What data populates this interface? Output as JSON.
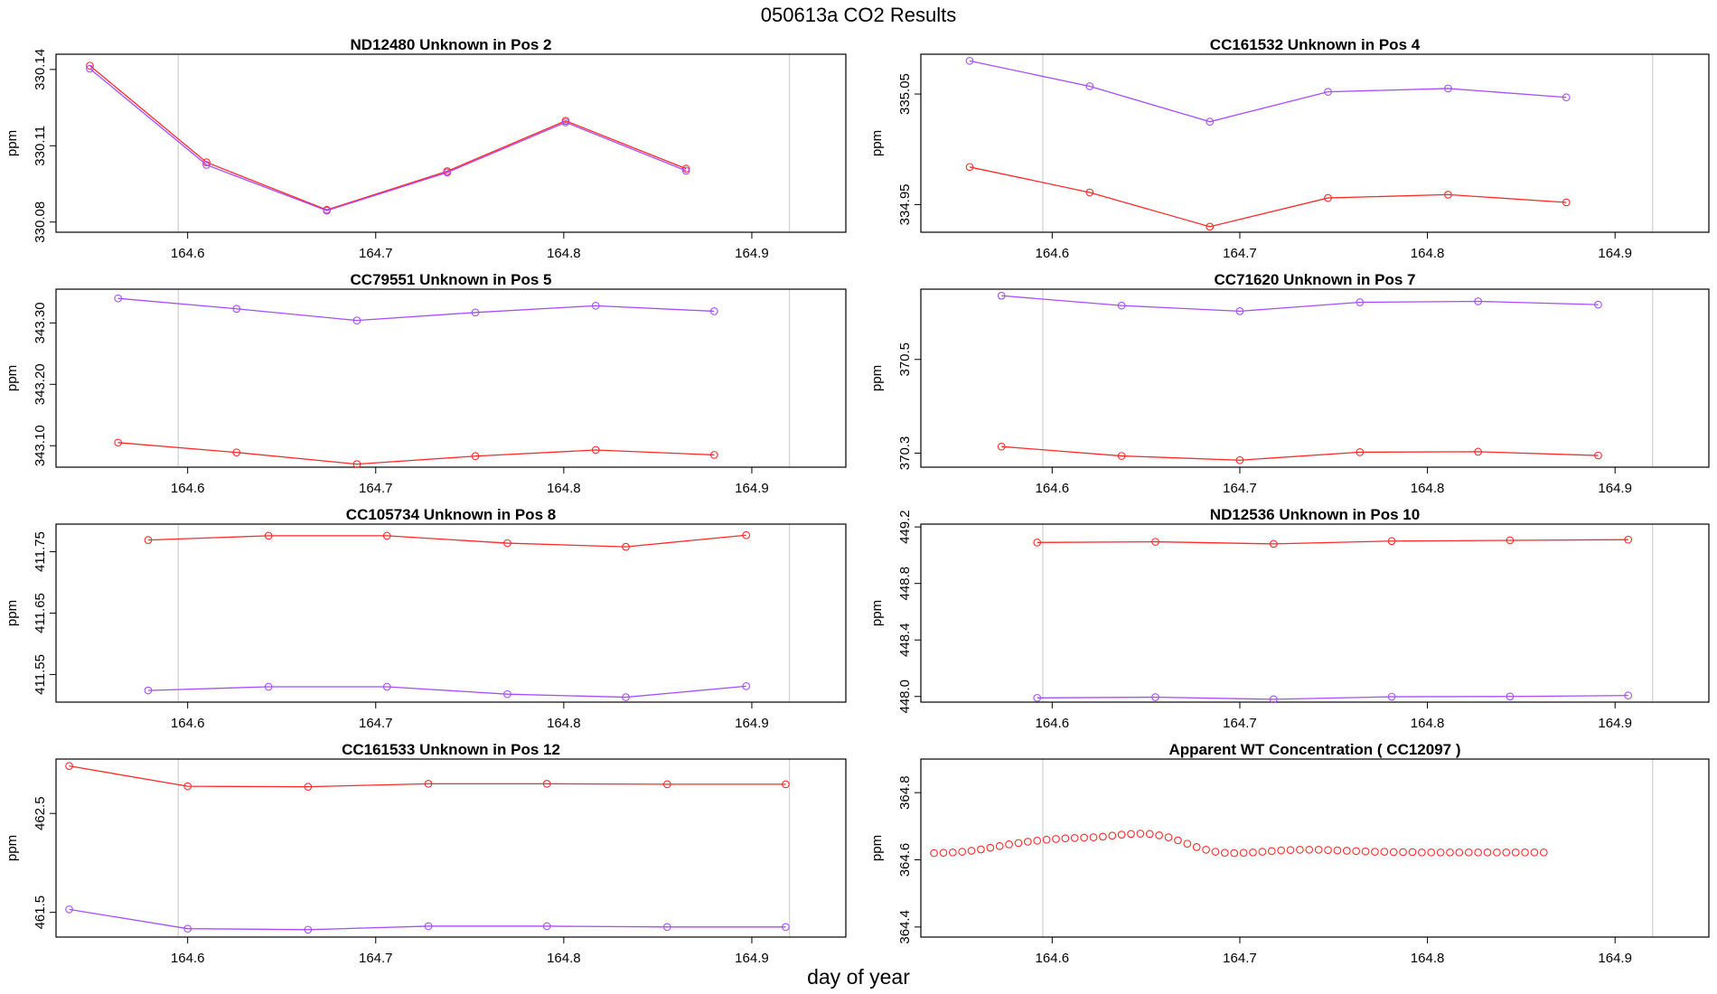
{
  "figure": {
    "title": "050613a  CO2 Results",
    "xlabel": "day of year"
  },
  "colors": {
    "red_series": "#ff2a2a",
    "purple_series": "#a64dff",
    "vline": "#d3d3d3",
    "axis": "#000000"
  },
  "chart_data": [
    {
      "type": "line",
      "title": "ND12480    Unknown in Pos 2",
      "ylabel": "ppm",
      "xlim": [
        164.53,
        164.95
      ],
      "ylim": [
        330.076,
        330.146
      ],
      "xticks": [
        "164.6",
        "164.7",
        "164.8",
        "164.9"
      ],
      "yticks": [
        "330.08",
        "330.11",
        "330.14"
      ],
      "vlines": [
        164.595,
        164.92
      ],
      "series": [
        {
          "name": "red",
          "x": [
            164.548,
            164.61,
            164.674,
            164.738,
            164.801,
            164.865
          ],
          "values": [
            330.1415,
            330.1035,
            330.0848,
            330.1,
            330.1198,
            330.101
          ]
        },
        {
          "name": "purple",
          "x": [
            164.548,
            164.61,
            164.674,
            164.738,
            164.801,
            164.865
          ],
          "values": [
            330.1403,
            330.1025,
            330.0845,
            330.0995,
            330.1192,
            330.1002
          ]
        }
      ]
    },
    {
      "type": "line",
      "title": "CC161532    Unknown in Pos 4",
      "ylabel": "ppm",
      "xlim": [
        164.53,
        164.95
      ],
      "ylim": [
        334.925,
        335.086
      ],
      "xticks": [
        "164.6",
        "164.7",
        "164.8",
        "164.9"
      ],
      "yticks": [
        "334.95",
        "335.05"
      ],
      "vlines": [
        164.595,
        164.92
      ],
      "series": [
        {
          "name": "red",
          "x": [
            164.556,
            164.62,
            164.684,
            164.747,
            164.811,
            164.874
          ],
          "values": [
            334.984,
            334.961,
            334.93,
            334.956,
            334.959,
            334.952
          ]
        },
        {
          "name": "purple",
          "x": [
            164.556,
            164.62,
            164.684,
            164.747,
            164.811,
            164.874
          ],
          "values": [
            335.08,
            335.057,
            335.025,
            335.052,
            335.055,
            335.047
          ]
        }
      ]
    },
    {
      "type": "line",
      "title": "CC79551    Unknown in Pos 5",
      "ylabel": "ppm",
      "xlim": [
        164.53,
        164.95
      ],
      "ylim": [
        343.065,
        343.355
      ],
      "xticks": [
        "164.6",
        "164.7",
        "164.8",
        "164.9"
      ],
      "yticks": [
        "343.10",
        "343.20",
        "343.30"
      ],
      "vlines": [
        164.595,
        164.92
      ],
      "series": [
        {
          "name": "red",
          "x": [
            164.563,
            164.626,
            164.69,
            164.753,
            164.817,
            164.88
          ],
          "values": [
            343.105,
            343.089,
            343.07,
            343.083,
            343.093,
            343.085
          ]
        },
        {
          "name": "purple",
          "x": [
            164.563,
            164.626,
            164.69,
            164.753,
            164.817,
            164.88
          ],
          "values": [
            343.34,
            343.323,
            343.304,
            343.317,
            343.328,
            343.319
          ]
        }
      ]
    },
    {
      "type": "line",
      "title": "CC71620    Unknown in Pos 7",
      "ylabel": "ppm",
      "xlim": [
        164.53,
        164.95
      ],
      "ylim": [
        370.27,
        370.65
      ],
      "xticks": [
        "164.6",
        "164.7",
        "164.8",
        "164.9"
      ],
      "yticks": [
        "370.3",
        "370.5"
      ],
      "vlines": [
        164.595,
        164.92
      ],
      "series": [
        {
          "name": "red",
          "x": [
            164.573,
            164.637,
            164.7,
            164.764,
            164.827,
            164.891
          ],
          "values": [
            370.314,
            370.294,
            370.285,
            370.302,
            370.303,
            370.295
          ]
        },
        {
          "name": "purple",
          "x": [
            164.573,
            164.637,
            164.7,
            164.764,
            164.827,
            164.891
          ],
          "values": [
            370.636,
            370.615,
            370.603,
            370.622,
            370.624,
            370.617
          ]
        }
      ]
    },
    {
      "type": "line",
      "title": "CC105734    Unknown in Pos 8",
      "ylabel": "ppm",
      "xlim": [
        164.53,
        164.95
      ],
      "ylim": [
        411.505,
        411.795
      ],
      "xticks": [
        "164.6",
        "164.7",
        "164.8",
        "164.9"
      ],
      "yticks": [
        "411.55",
        "411.65",
        "411.75"
      ],
      "vlines": [
        164.595,
        164.92
      ],
      "series": [
        {
          "name": "red",
          "x": [
            164.579,
            164.643,
            164.706,
            164.77,
            164.833,
            164.897
          ],
          "values": [
            411.769,
            411.776,
            411.776,
            411.764,
            411.758,
            411.777
          ]
        },
        {
          "name": "purple",
          "x": [
            164.579,
            164.643,
            164.706,
            164.77,
            164.833,
            164.897
          ],
          "values": [
            411.524,
            411.53,
            411.53,
            411.518,
            411.513,
            411.531
          ]
        }
      ]
    },
    {
      "type": "line",
      "title": "ND12536    Unknown in Pos 10",
      "ylabel": "ppm",
      "xlim": [
        164.53,
        164.95
      ],
      "ylim": [
        447.96,
        449.22
      ],
      "xticks": [
        "164.6",
        "164.7",
        "164.8",
        "164.9"
      ],
      "yticks": [
        "448.0",
        "448.4",
        "448.8",
        "449.2"
      ],
      "vlines": [
        164.595,
        164.92
      ],
      "series": [
        {
          "name": "red",
          "x": [
            164.592,
            164.655,
            164.718,
            164.781,
            164.844,
            164.907
          ],
          "values": [
            449.09,
            449.095,
            449.08,
            449.1,
            449.105,
            449.11
          ]
        },
        {
          "name": "purple",
          "x": [
            164.592,
            164.655,
            164.718,
            164.781,
            164.844,
            164.907
          ],
          "values": [
            447.99,
            447.995,
            447.98,
            447.998,
            448.0,
            448.007
          ]
        }
      ]
    },
    {
      "type": "line",
      "title": "CC161533    Unknown in Pos 12",
      "ylabel": "ppm",
      "xlim": [
        164.53,
        164.95
      ],
      "ylim": [
        461.25,
        463.05
      ],
      "xticks": [
        "164.6",
        "164.7",
        "164.8",
        "164.9"
      ],
      "yticks": [
        "461.5",
        "462.5"
      ],
      "vlines": [
        164.595,
        164.92
      ],
      "series": [
        {
          "name": "red",
          "x": [
            164.537,
            164.6,
            164.664,
            164.728,
            164.791,
            164.855,
            164.918
          ],
          "values": [
            462.98,
            462.775,
            462.77,
            462.8,
            462.8,
            462.795,
            462.795
          ]
        },
        {
          "name": "purple",
          "x": [
            164.537,
            164.6,
            164.664,
            164.728,
            164.791,
            164.855,
            164.918
          ],
          "values": [
            461.53,
            461.335,
            461.325,
            461.36,
            461.36,
            461.352,
            461.352
          ]
        }
      ]
    },
    {
      "type": "scatter",
      "title": "Apparent WT Concentration ( CC12097 )",
      "ylabel": "ppm",
      "xlim": [
        164.53,
        164.95
      ],
      "ylim": [
        364.37,
        364.9
      ],
      "xticks": [
        "164.6",
        "164.7",
        "164.8",
        "164.9"
      ],
      "yticks": [
        "364.4",
        "364.6",
        "364.8"
      ],
      "vlines": [
        164.595,
        164.92
      ],
      "series": [
        {
          "name": "red",
          "x_start": 164.537,
          "x_step": 0.005,
          "values": [
            364.62,
            364.621,
            364.622,
            364.624,
            364.627,
            364.631,
            364.636,
            364.641,
            364.646,
            364.65,
            364.654,
            364.657,
            364.66,
            364.662,
            364.664,
            364.665,
            364.666,
            364.667,
            364.669,
            364.672,
            364.675,
            364.677,
            364.678,
            364.677,
            364.673,
            364.667,
            364.658,
            364.648,
            364.638,
            364.63,
            364.624,
            364.621,
            364.62,
            364.621,
            364.622,
            364.624,
            364.626,
            364.628,
            364.629,
            364.63,
            364.63,
            364.63,
            364.629,
            364.628,
            364.627,
            364.626,
            364.625,
            364.624,
            364.624,
            364.623,
            364.623,
            364.623,
            364.622,
            364.622,
            364.622,
            364.622,
            364.622,
            364.622,
            364.622,
            364.622,
            364.622,
            364.622,
            364.622,
            364.622,
            364.622,
            364.622
          ]
        }
      ]
    }
  ]
}
